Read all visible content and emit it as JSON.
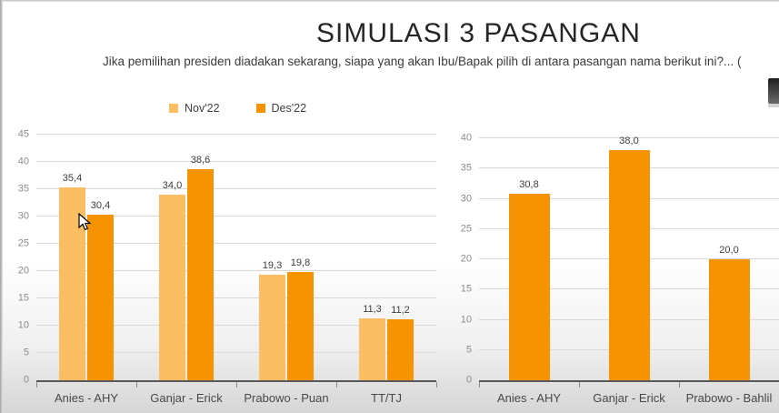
{
  "header": {
    "title": "SIMULASI 3 PASANGAN",
    "subtitle": "Jika pemilihan presiden diadakan sekarang, siapa yang akan Ibu/Bapak pilih di antara pasangan nama berikut ini?... ("
  },
  "legend": {
    "items": [
      {
        "label": "Nov'22",
        "color": "#FBBE63"
      },
      {
        "label": "Des'22",
        "color": "#F59303"
      }
    ]
  },
  "chart_data": [
    {
      "type": "bar",
      "title": "",
      "categories": [
        "Anies - AHY",
        "Ganjar - Erick",
        "Prabowo - Puan",
        "TT/TJ"
      ],
      "series": [
        {
          "name": "Nov'22",
          "color": "#FBBE63",
          "values": [
            35.4,
            34.0,
            19.3,
            11.3
          ]
        },
        {
          "name": "Des'22",
          "color": "#F59303",
          "values": [
            30.4,
            38.6,
            19.8,
            11.2
          ]
        }
      ],
      "ylim": [
        0,
        45
      ],
      "ystep": 5,
      "grid": true,
      "legend_position": "top",
      "decimal_separator": ","
    },
    {
      "type": "bar",
      "title": "",
      "categories": [
        "Anies - AHY",
        "Ganjar - Erick",
        "Prabowo - Bahlil"
      ],
      "series": [
        {
          "name": "Des'22",
          "color": "#F59303",
          "values": [
            30.8,
            38.0,
            20.0
          ]
        }
      ],
      "ylim": [
        0,
        40
      ],
      "ystep": 5,
      "grid": true,
      "legend_position": "none",
      "decimal_separator": ","
    }
  ]
}
